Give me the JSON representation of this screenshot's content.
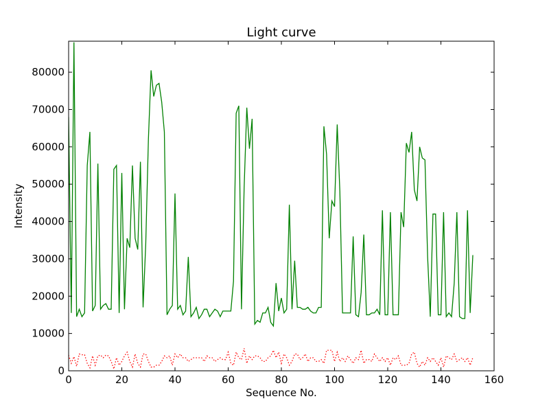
{
  "chart_data": {
    "type": "line",
    "title": "Light curve",
    "xlabel": "Sequence No.",
    "ylabel": "Intensity",
    "xlim": [
      0,
      160
    ],
    "ylim": [
      0,
      88300
    ],
    "xticks": [
      "0",
      "20",
      "40",
      "60",
      "80",
      "100",
      "120",
      "140",
      "160"
    ],
    "yticks": [
      "0",
      "10000",
      "20000",
      "30000",
      "40000",
      "50000",
      "60000",
      "70000",
      "80000"
    ],
    "grid": false,
    "legend": "none",
    "series": [
      {
        "color": "#008000",
        "style": "solid",
        "x": [
          0,
          1,
          2,
          3,
          4,
          5,
          6,
          7,
          8,
          9,
          10,
          11,
          12,
          13,
          14,
          15,
          16,
          17,
          18,
          19,
          20,
          21,
          22,
          23,
          24,
          25,
          26,
          27,
          28,
          29,
          30,
          31,
          32,
          33,
          34,
          35,
          36,
          37,
          38,
          39,
          40,
          41,
          42,
          43,
          44,
          45,
          46,
          47,
          48,
          49,
          50,
          51,
          52,
          53,
          54,
          55,
          56,
          57,
          58,
          59,
          60,
          61,
          62,
          63,
          64,
          65,
          66,
          67,
          68,
          69,
          70,
          71,
          72,
          73,
          74,
          75,
          76,
          77,
          78,
          79,
          80,
          81,
          82,
          83,
          84,
          85,
          86,
          87,
          88,
          89,
          90,
          91,
          92,
          93,
          94,
          95,
          96,
          97,
          98,
          99,
          100,
          101,
          102,
          103,
          104,
          105,
          106,
          107,
          108,
          109,
          110,
          111,
          112,
          113,
          114,
          115,
          116,
          117,
          118,
          119,
          120,
          121,
          122,
          123,
          124,
          125,
          126,
          127,
          128,
          129,
          130,
          131,
          132,
          133,
          134,
          135,
          136,
          137,
          138,
          139,
          140,
          141,
          142,
          143,
          144,
          145,
          146,
          147,
          148,
          149,
          150,
          151,
          152
        ],
        "y": [
          68000,
          15500,
          88000,
          14500,
          16500,
          14500,
          15500,
          55000,
          64000,
          16000,
          17500,
          55500,
          16500,
          17500,
          18000,
          16500,
          16500,
          54000,
          55000,
          15500,
          53000,
          16500,
          35500,
          33000,
          55000,
          35500,
          32500,
          56000,
          17000,
          34000,
          62000,
          80500,
          73500,
          76500,
          77000,
          72000,
          64000,
          15000,
          16500,
          17500,
          47500,
          16500,
          17500,
          15000,
          16000,
          30500,
          14500,
          15500,
          17000,
          14000,
          15000,
          16500,
          16500,
          14500,
          15500,
          16500,
          16000,
          14500,
          16000,
          16000,
          16000,
          16000,
          24000,
          69000,
          71000,
          16500,
          49000,
          70500,
          59500,
          67500,
          12500,
          13500,
          13000,
          15500,
          15500,
          17000,
          13000,
          12000,
          23500,
          16000,
          19500,
          15500,
          16500,
          44500,
          16500,
          29500,
          17000,
          17000,
          16500,
          16500,
          17000,
          16000,
          15500,
          15500,
          17000,
          17000,
          65500,
          58000,
          35500,
          45500,
          44000,
          66000,
          48000,
          15500,
          15500,
          15500,
          15500,
          36000,
          15000,
          14500,
          21000,
          36500,
          15000,
          15000,
          15500,
          15500,
          16500,
          15000,
          43000,
          15000,
          15000,
          42500,
          15000,
          15000,
          15000,
          42500,
          38500,
          61000,
          58500,
          64000,
          48500,
          45500,
          60000,
          57000,
          56500,
          30500,
          14500,
          42000,
          42000,
          15000,
          15000,
          42500,
          14500,
          15500,
          14500,
          23500,
          42500,
          14500,
          14000,
          14000,
          43000,
          15500,
          31000
        ]
      },
      {
        "color": "#ff0000",
        "style": "dotted",
        "x": [
          0,
          1,
          2,
          3,
          4,
          5,
          6,
          7,
          8,
          9,
          10,
          11,
          12,
          13,
          14,
          15,
          16,
          17,
          18,
          19,
          20,
          21,
          22,
          23,
          24,
          25,
          26,
          27,
          28,
          29,
          30,
          31,
          32,
          33,
          34,
          35,
          36,
          37,
          38,
          39,
          40,
          41,
          42,
          43,
          44,
          45,
          46,
          47,
          48,
          49,
          50,
          51,
          52,
          53,
          54,
          55,
          56,
          57,
          58,
          59,
          60,
          61,
          62,
          63,
          64,
          65,
          66,
          67,
          68,
          69,
          70,
          71,
          72,
          73,
          74,
          75,
          76,
          77,
          78,
          79,
          80,
          81,
          82,
          83,
          84,
          85,
          86,
          87,
          88,
          89,
          90,
          91,
          92,
          93,
          94,
          95,
          96,
          97,
          98,
          99,
          100,
          101,
          102,
          103,
          104,
          105,
          106,
          107,
          108,
          109,
          110,
          111,
          112,
          113,
          114,
          115,
          116,
          117,
          118,
          119,
          120,
          121,
          122,
          123,
          124,
          125,
          126,
          127,
          128,
          129,
          130,
          131,
          132,
          133,
          134,
          135,
          136,
          137,
          138,
          139,
          140,
          141,
          142,
          143,
          144,
          145,
          146,
          147,
          148,
          149,
          150,
          151,
          152
        ],
        "y": [
          4200,
          2000,
          3800,
          1200,
          4500,
          4300,
          4300,
          2000,
          800,
          4000,
          1500,
          4000,
          4200,
          3500,
          4200,
          4000,
          2500,
          500,
          3500,
          1500,
          2500,
          4000,
          5000,
          2500,
          1000,
          4500,
          2000,
          1000,
          4500,
          4500,
          2500,
          1000,
          1000,
          1500,
          1500,
          2500,
          4000,
          3500,
          4000,
          1500,
          4500,
          3500,
          4500,
          3500,
          3500,
          2500,
          3000,
          3500,
          3500,
          3500,
          3500,
          2500,
          4000,
          3500,
          3500,
          2500,
          3000,
          3500,
          3000,
          3000,
          5000,
          2000,
          1500,
          5000,
          3500,
          3000,
          6000,
          2000,
          4000,
          3000,
          4000,
          4000,
          3500,
          2500,
          2500,
          3500,
          4000,
          5500,
          3500,
          5000,
          2000,
          4500,
          3500,
          1500,
          2500,
          4500,
          4500,
          3000,
          3500,
          4500,
          2500,
          3500,
          3500,
          2500,
          2500,
          3000,
          2000,
          5500,
          5500,
          5500,
          2500,
          5000,
          2500,
          3500,
          2500,
          4000,
          3000,
          2000,
          3500,
          3000,
          5500,
          2000,
          3000,
          3000,
          2500,
          4500,
          3500,
          2500,
          3500,
          2500,
          3500,
          1500,
          3500,
          3000,
          4000,
          1500,
          1500,
          1500,
          2000,
          4500,
          5000,
          2000,
          1000,
          2500,
          1500,
          3500,
          2500,
          3500,
          2500,
          1500,
          3500,
          1000,
          4000,
          3500,
          3000,
          4500,
          2500,
          3000,
          3500,
          2500,
          3500,
          1500,
          3500
        ]
      }
    ]
  }
}
